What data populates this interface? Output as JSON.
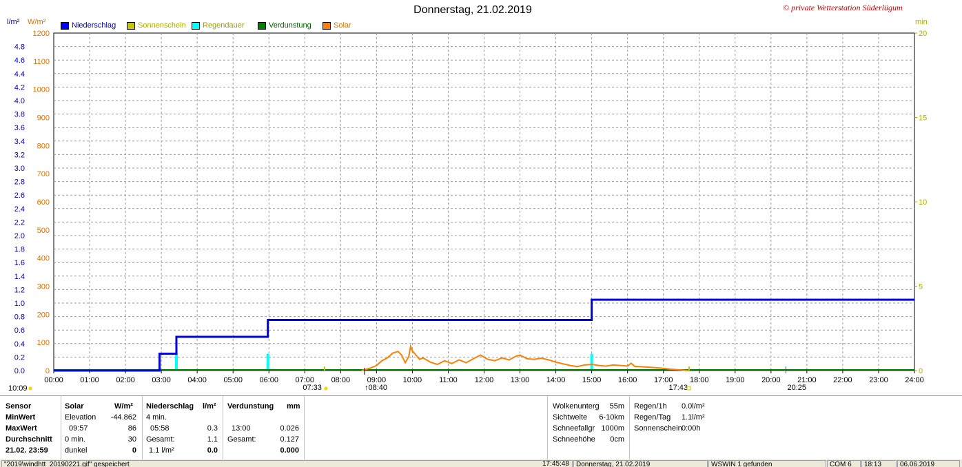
{
  "title": "Donnerstag, 21.02.2019",
  "copyright": "© private Wetterstation Süderlügum",
  "units": {
    "left_rain": "l/m²",
    "left_solar": "W/m²",
    "right": "min"
  },
  "colors": {
    "niederschlag": "#0000dd",
    "sonnenschein": "#c8c800",
    "regendauer": "#00ffff",
    "verdunstung": "#008000",
    "solar": "#ff8000"
  },
  "legend": [
    {
      "label": "Niederschlag",
      "color": "#0000ff",
      "text_color": "#0000aa"
    },
    {
      "label": "Sonnenschein",
      "color": "#c8c800",
      "text_color": "#b0b000"
    },
    {
      "label": "Regendauer",
      "color": "#00ffff",
      "text_color": "#a0a000"
    },
    {
      "label": "Verdunstung",
      "color": "#008000",
      "text_color": "#006000"
    },
    {
      "label": "Solar",
      "color": "#ff8000",
      "text_color": "#e07000"
    }
  ],
  "chart_data": {
    "type": "line",
    "title": "Donnerstag, 21.02.2019",
    "x_ticks": [
      "00:00",
      "01:00",
      "02:00",
      "03:00",
      "04:00",
      "05:00",
      "06:00",
      "07:00",
      "08:00",
      "09:00",
      "10:00",
      "11:00",
      "12:00",
      "13:00",
      "14:00",
      "15:00",
      "16:00",
      "17:00",
      "18:00",
      "19:00",
      "20:00",
      "21:00",
      "22:00",
      "23:00",
      "24:00"
    ],
    "y_left_rain_ticks": [
      "0.0",
      "0.2",
      "0.4",
      "0.6",
      "0.8",
      "1.0",
      "1.2",
      "1.4",
      "1.6",
      "1.8",
      "2.0",
      "2.2",
      "2.4",
      "2.6",
      "2.8",
      "3.0",
      "3.2",
      "3.4",
      "3.6",
      "3.8",
      "4.0",
      "4.2",
      "4.4",
      "4.6",
      "4.8"
    ],
    "y_left_solar_ticks": [
      "0",
      "100",
      "200",
      "300",
      "400",
      "500",
      "600",
      "700",
      "800",
      "900",
      "1000",
      "1100",
      "1200"
    ],
    "y_right_ticks": [
      "0",
      "5",
      "10",
      "15",
      "20"
    ],
    "ylim_rain": [
      0,
      5.0
    ],
    "ylim_solar": [
      0,
      1200
    ],
    "ylim_minutes": [
      0,
      20
    ],
    "grid": true,
    "series": [
      {
        "name": "Niederschlag",
        "unit": "l/m²",
        "step": true,
        "points": [
          [
            0.0,
            0.0
          ],
          [
            2.95,
            0.0
          ],
          [
            2.95,
            0.25
          ],
          [
            3.42,
            0.25
          ],
          [
            3.42,
            0.5
          ],
          [
            5.97,
            0.5
          ],
          [
            5.97,
            0.75
          ],
          [
            15.0,
            0.75
          ],
          [
            15.0,
            1.05
          ],
          [
            24.0,
            1.05
          ]
        ]
      },
      {
        "name": "Regendauer",
        "unit": "min",
        "bars": [
          [
            3.42,
            1
          ],
          [
            5.97,
            1
          ],
          [
            15.0,
            1
          ]
        ]
      },
      {
        "name": "Verdunstung",
        "unit": "mm",
        "points": [
          [
            0.0,
            0.0
          ],
          [
            24.0,
            0.0
          ]
        ]
      },
      {
        "name": "Solar",
        "unit": "W/m²",
        "points": [
          [
            8.58,
            0
          ],
          [
            8.7,
            4
          ],
          [
            8.85,
            10
          ],
          [
            9.0,
            18
          ],
          [
            9.15,
            35
          ],
          [
            9.3,
            45
          ],
          [
            9.45,
            62
          ],
          [
            9.6,
            68
          ],
          [
            9.7,
            55
          ],
          [
            9.8,
            28
          ],
          [
            9.9,
            50
          ],
          [
            9.95,
            86
          ],
          [
            10.0,
            70
          ],
          [
            10.1,
            55
          ],
          [
            10.2,
            40
          ],
          [
            10.3,
            45
          ],
          [
            10.5,
            30
          ],
          [
            10.7,
            22
          ],
          [
            10.9,
            35
          ],
          [
            11.1,
            25
          ],
          [
            11.3,
            38
          ],
          [
            11.5,
            28
          ],
          [
            11.7,
            42
          ],
          [
            11.9,
            55
          ],
          [
            12.1,
            40
          ],
          [
            12.3,
            35
          ],
          [
            12.5,
            45
          ],
          [
            12.7,
            38
          ],
          [
            12.9,
            52
          ],
          [
            13.0,
            55
          ],
          [
            13.2,
            42
          ],
          [
            13.4,
            40
          ],
          [
            13.6,
            44
          ],
          [
            13.8,
            38
          ],
          [
            14.0,
            30
          ],
          [
            14.2,
            24
          ],
          [
            14.4,
            18
          ],
          [
            14.6,
            14
          ],
          [
            14.8,
            20
          ],
          [
            15.0,
            22
          ],
          [
            15.2,
            18
          ],
          [
            15.4,
            16
          ],
          [
            15.6,
            20
          ],
          [
            15.8,
            18
          ],
          [
            16.0,
            16
          ],
          [
            16.1,
            26
          ],
          [
            16.2,
            15
          ],
          [
            16.5,
            13
          ],
          [
            16.8,
            10
          ],
          [
            17.0,
            8
          ],
          [
            17.2,
            5
          ],
          [
            17.4,
            3
          ],
          [
            17.6,
            1
          ],
          [
            17.72,
            0
          ]
        ]
      }
    ],
    "markers": {
      "sunrise": "07:33",
      "sun_transit": "08:40",
      "sunset": "17:43",
      "moon": "20:25",
      "left_start": "10:09"
    }
  },
  "table": {
    "sensor": {
      "header": "Sensor",
      "min": "MinWert",
      "max": "MaxWert",
      "avg": "Durchschnitt",
      "time": "21.02. 23:59"
    },
    "solar": {
      "header": "Solar",
      "unit": "W/m²",
      "r1_label": "Elevation",
      "r1_val": "-44.862",
      "r2_label": "09:57",
      "r2_val": "86",
      "r3_label": "0 min.",
      "r3_val": "30",
      "r4_label": "dunkel",
      "r4_val": "0"
    },
    "niederschlag": {
      "header": "Niederschlag",
      "unit": "l/m²",
      "r1_label": "4 min.",
      "r2_label": "05:58",
      "r2_val": "0.3",
      "r3_label": "Gesamt:",
      "r3_val": "1.1",
      "r4_label": "1.1 l/m²",
      "r4_val": "0.0"
    },
    "verdunstung": {
      "header": "Verdunstung",
      "unit": "mm",
      "r2_label": "13:00",
      "r2_val": "0.026",
      "r3_label": "Gesamt:",
      "r3_val": "0.127",
      "r4_val": "0.000"
    },
    "right1": [
      {
        "label": "Wolkenunterg",
        "value": "55m"
      },
      {
        "label": "Sichtweite",
        "value": "6-10km"
      },
      {
        "label": "Schneefallgr",
        "value": "1000m"
      },
      {
        "label": "Schneehöhe",
        "value": "0cm"
      }
    ],
    "right2": [
      {
        "label": "Regen/1h",
        "value": "0.0l/m²"
      },
      {
        "label": "Regen/Tag",
        "value": "1.1l/m²"
      },
      {
        "label": "Sonnenschein",
        "value": "0:00h"
      }
    ]
  },
  "statusbar": {
    "file": "\"2019\\windhtt_20190221.gif\" gespeichert",
    "time": "17:45:48",
    "date": "Donnerstag, 21.02.2019",
    "device": "WSWIN 1 gefunden",
    "port": "COM 6",
    "clock": "18:13",
    "date2": "06.06.2019"
  }
}
